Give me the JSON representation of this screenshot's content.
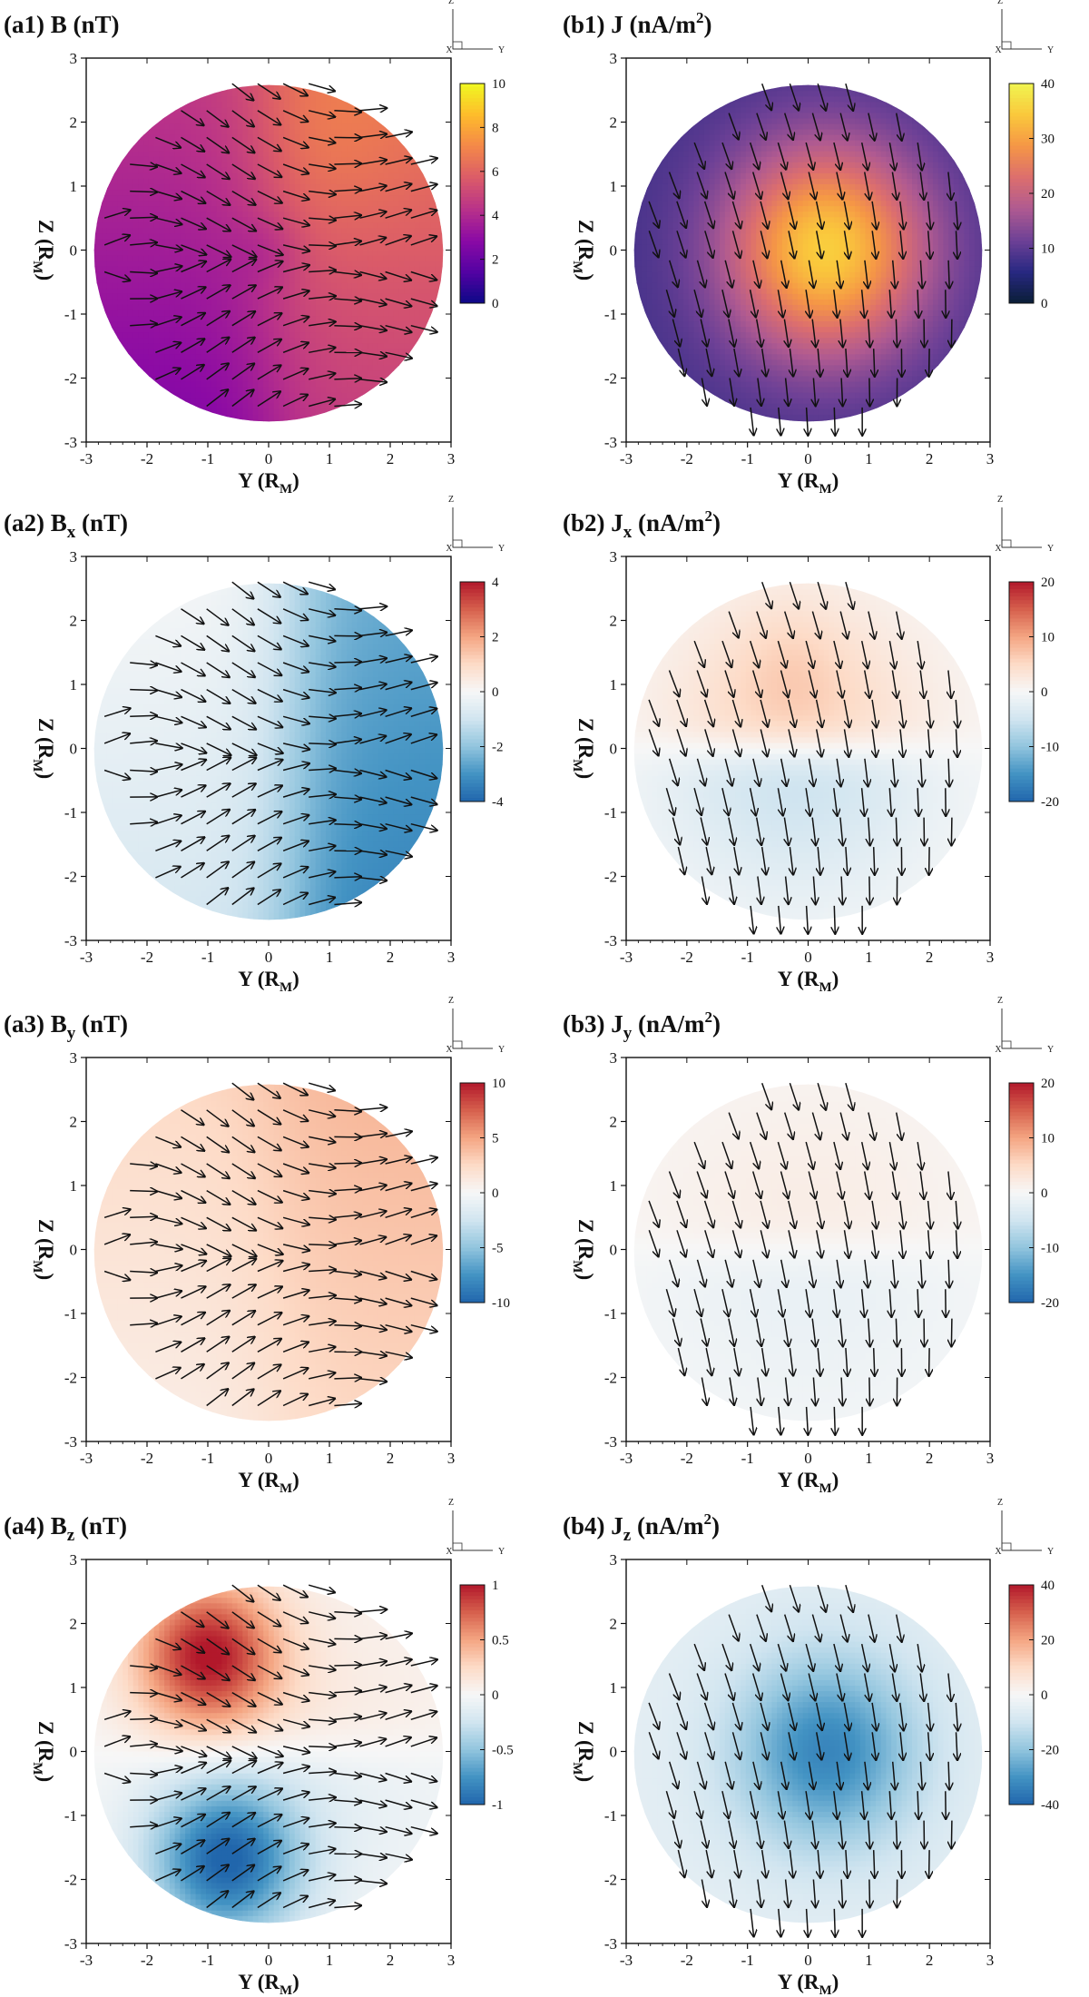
{
  "chart_data": [
    {
      "id": "a1",
      "type": "heatmap",
      "title": {
        "prefix": "(a1) B",
        "sub": "",
        "sup": "",
        "unit": "(nT)"
      },
      "xlabel": "Y (R_M)",
      "ylabel": "Z (R_M)",
      "xlim": [
        -3,
        3
      ],
      "ylim": [
        -3,
        3
      ],
      "xticks": [
        "-3",
        "-2",
        "-1",
        "0",
        "1",
        "2",
        "3"
      ],
      "yticks": [
        "3",
        "2",
        "1",
        "0",
        "-1",
        "-2",
        "-3"
      ],
      "colorbar": {
        "range": [
          0,
          10
        ],
        "ticks": [
          "10",
          "8",
          "6",
          "4",
          "2",
          "0"
        ],
        "colormap": "plasma"
      },
      "field": {
        "kind": "B_mag",
        "description": "≈3 nT in the dayside-left (Y<0), rising to ≈7 nT toward Y>0, Z>0"
      },
      "vectors": "magnetic-field",
      "triad_axes": [
        "Z",
        "Y",
        "X"
      ]
    },
    {
      "id": "b1",
      "type": "heatmap",
      "title": {
        "prefix": "(b1) J",
        "sub": "",
        "sup": "2",
        "unit": "(nA/m",
        "close": ")"
      },
      "xlabel": "Y (R_M)",
      "ylabel": "Z (R_M)",
      "xlim": [
        -3,
        3
      ],
      "ylim": [
        -3,
        3
      ],
      "xticks": [
        "-3",
        "-2",
        "-1",
        "0",
        "1",
        "2",
        "3"
      ],
      "yticks": [
        "3",
        "2",
        "1",
        "0",
        "-1",
        "-2",
        "-3"
      ],
      "colorbar": {
        "range": [
          0,
          40
        ],
        "ticks": [
          "40",
          "30",
          "20",
          "10",
          "0"
        ],
        "colormap": "plasma"
      },
      "field": {
        "kind": "J_mag",
        "description": "peak ≈35 nA/m² near Y≈0.3, Z≈0; falling to ≈8 at the disk edge"
      },
      "vectors": "current-density",
      "triad_axes": [
        "Z",
        "Y",
        "X"
      ]
    },
    {
      "id": "a2",
      "type": "heatmap",
      "title": {
        "prefix": "(a2) B",
        "sub": "x",
        "sup": "",
        "unit": "(nT)"
      },
      "xlabel": "Y (R_M)",
      "ylabel": "Z (R_M)",
      "xlim": [
        -3,
        3
      ],
      "ylim": [
        -3,
        3
      ],
      "xticks": [
        "-3",
        "-2",
        "-1",
        "0",
        "1",
        "2",
        "3"
      ],
      "yticks": [
        "3",
        "2",
        "1",
        "0",
        "-1",
        "-2",
        "-3"
      ],
      "colorbar": {
        "range": [
          -4,
          4
        ],
        "ticks": [
          "4",
          "2",
          "0",
          "-2",
          "-4"
        ],
        "colormap": "diverging"
      },
      "field": {
        "kind": "Bx",
        "description": "≈-0.5 on the Y<0 side decreasing to ≈-3 at Y≈2"
      },
      "vectors": "magnetic-field",
      "triad_axes": [
        "Z",
        "Y",
        "X"
      ]
    },
    {
      "id": "b2",
      "type": "heatmap",
      "title": {
        "prefix": "(b2) J",
        "sub": "x",
        "sup": "2",
        "unit": "(nA/m",
        "close": ")"
      },
      "xlabel": "Y (R_M)",
      "ylabel": "Z (R_M)",
      "xlim": [
        -3,
        3
      ],
      "ylim": [
        -3,
        3
      ],
      "xticks": [
        "-3",
        "-2",
        "-1",
        "0",
        "1",
        "2",
        "3"
      ],
      "yticks": [
        "3",
        "2",
        "1",
        "0",
        "-1",
        "-2",
        "-3"
      ],
      "colorbar": {
        "range": [
          -20,
          20
        ],
        "ticks": [
          "20",
          "10",
          "0",
          "-10",
          "-20"
        ],
        "colormap": "diverging"
      },
      "field": {
        "kind": "Jx",
        "description": "≈+6 at Z≈1.5 above the equator, ≈-4 at Z≈-1.3 below"
      },
      "vectors": "current-density",
      "triad_axes": [
        "Z",
        "Y",
        "X"
      ]
    },
    {
      "id": "a3",
      "type": "heatmap",
      "title": {
        "prefix": "(a3) B",
        "sub": "y",
        "sup": "",
        "unit": "(nT)"
      },
      "xlabel": "Y (R_M)",
      "ylabel": "Z (R_M)",
      "xlim": [
        -3,
        3
      ],
      "ylim": [
        -3,
        3
      ],
      "xticks": [
        "-3",
        "-2",
        "-1",
        "0",
        "1",
        "2",
        "3"
      ],
      "yticks": [
        "3",
        "2",
        "1",
        "0",
        "-1",
        "-2",
        "-3"
      ],
      "colorbar": {
        "range": [
          -10,
          10
        ],
        "ticks": [
          "10",
          "5",
          "0",
          "-5",
          "-10"
        ],
        "colormap": "diverging"
      },
      "field": {
        "kind": "By",
        "description": "positive ≈2 to 4 nT throughout, largest toward Y>0"
      },
      "vectors": "magnetic-field",
      "triad_axes": [
        "Z",
        "Y",
        "X"
      ]
    },
    {
      "id": "b3",
      "type": "heatmap",
      "title": {
        "prefix": "(b3) J",
        "sub": "y",
        "sup": "2",
        "unit": "(nA/m",
        "close": ")"
      },
      "xlabel": "Y (R_M)",
      "ylabel": "Z (R_M)",
      "xlim": [
        -3,
        3
      ],
      "ylim": [
        -3,
        3
      ],
      "xticks": [
        "-3",
        "-2",
        "-1",
        "0",
        "1",
        "2",
        "3"
      ],
      "yticks": [
        "3",
        "2",
        "1",
        "0",
        "-1",
        "-2",
        "-3"
      ],
      "colorbar": {
        "range": [
          -20,
          20
        ],
        "ticks": [
          "20",
          "10",
          "0",
          "-10",
          "-20"
        ],
        "colormap": "diverging"
      },
      "field": {
        "kind": "Jy",
        "description": "weak ≈+2 above the equator, ≈-2 below"
      },
      "vectors": "current-density",
      "triad_axes": [
        "Z",
        "Y",
        "X"
      ]
    },
    {
      "id": "a4",
      "type": "heatmap",
      "title": {
        "prefix": "(a4) B",
        "sub": "z",
        "sup": "",
        "unit": "(nT)"
      },
      "xlabel": "Y (R_M)",
      "ylabel": "Z (R_M)",
      "xlim": [
        -3,
        3
      ],
      "ylim": [
        -3,
        3
      ],
      "xticks": [
        "-3",
        "-2",
        "-1",
        "0",
        "1",
        "2",
        "3"
      ],
      "yticks": [
        "3",
        "2",
        "1",
        "0",
        "-1",
        "-2",
        "-3"
      ],
      "colorbar": {
        "range": [
          -1,
          1
        ],
        "ticks": [
          "1",
          "0.5",
          "0",
          "-0.5",
          "-1"
        ],
        "colormap": "diverging"
      },
      "field": {
        "kind": "Bz",
        "description": "≈+0.9 near Y≈-1, Z≈1.5; ≈-0.9 near Y≈-0.7, Z≈-1.7; near 0 for Y>1"
      },
      "vectors": "magnetic-field",
      "triad_axes": [
        "Z",
        "Y",
        "X"
      ]
    },
    {
      "id": "b4",
      "type": "heatmap",
      "title": {
        "prefix": "(b4) J",
        "sub": "z",
        "sup": "2",
        "unit": "(nA/m",
        "close": ")"
      },
      "xlabel": "Y (R_M)",
      "ylabel": "Z (R_M)",
      "xlim": [
        -3,
        3
      ],
      "ylim": [
        -3,
        3
      ],
      "xticks": [
        "-3",
        "-2",
        "-1",
        "0",
        "1",
        "2",
        "3"
      ],
      "yticks": [
        "3",
        "2",
        "1",
        "0",
        "-1",
        "-2",
        "-3"
      ],
      "colorbar": {
        "range": [
          -40,
          40
        ],
        "ticks": [
          "40",
          "20",
          "0",
          "-20",
          "-40"
        ],
        "colormap": "diverging"
      },
      "field": {
        "kind": "Jz",
        "description": "≈-33 nA/m² near Y≈0.3, Z≈0; ≈-5 at the disk edge"
      },
      "vectors": "current-density",
      "triad_axes": [
        "Z",
        "Y",
        "X"
      ]
    }
  ]
}
